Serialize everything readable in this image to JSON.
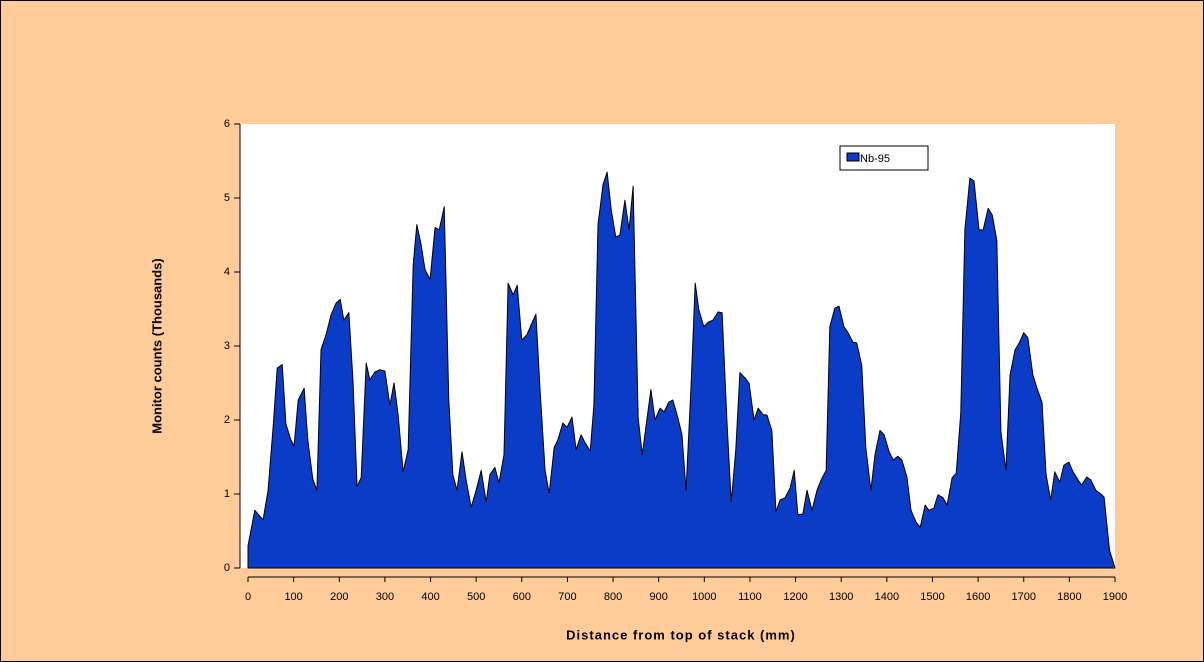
{
  "chart_data": {
    "type": "area",
    "xlabel": "Distance from top of stack (mm)",
    "ylabel": "Monitor counts (Thousands)",
    "x": [
      0,
      15,
      33,
      44,
      55,
      64,
      75,
      83,
      94,
      101,
      110,
      123,
      131,
      142,
      151,
      160,
      171,
      182,
      193,
      202,
      210,
      221,
      230,
      239,
      248,
      259,
      267,
      278,
      289,
      300,
      311,
      320,
      329,
      340,
      351,
      362,
      370,
      379,
      388,
      399,
      410,
      419,
      430,
      440,
      449,
      458,
      469,
      478,
      489,
      500,
      511,
      522,
      530,
      541,
      550,
      561,
      570,
      581,
      590,
      600,
      611,
      620,
      631,
      640,
      651,
      660,
      671,
      679,
      690,
      699,
      710,
      719,
      730,
      739,
      750,
      758,
      767,
      778,
      787,
      796,
      806,
      815,
      826,
      835,
      844,
      855,
      864,
      874,
      883,
      892,
      903,
      912,
      922,
      931,
      942,
      951,
      960,
      971,
      980,
      988,
      999,
      1008,
      1019,
      1030,
      1039,
      1050,
      1059,
      1069,
      1078,
      1089,
      1098,
      1109,
      1118,
      1129,
      1137,
      1148,
      1157,
      1166,
      1177,
      1188,
      1197,
      1205,
      1216,
      1225,
      1236,
      1247,
      1256,
      1267,
      1275,
      1286,
      1295,
      1306,
      1315,
      1326,
      1334,
      1345,
      1354,
      1365,
      1374,
      1385,
      1394,
      1405,
      1414,
      1424,
      1433,
      1444,
      1453,
      1464,
      1473,
      1484,
      1492,
      1503,
      1512,
      1523,
      1532,
      1543,
      1552,
      1562,
      1571,
      1582,
      1591,
      1602,
      1611,
      1622,
      1631,
      1641,
      1650,
      1661,
      1670,
      1681,
      1690,
      1700,
      1709,
      1720,
      1729,
      1740,
      1749,
      1759,
      1768,
      1779,
      1788,
      1799,
      1808,
      1819,
      1827,
      1838,
      1847,
      1858,
      1867,
      1876,
      1888,
      1900
    ],
    "series": [
      {
        "name": "Nb-95",
        "color": "#0a3cc8",
        "values": [
          0.3,
          0.78,
          0.65,
          1.05,
          1.9,
          2.7,
          2.75,
          1.95,
          1.73,
          1.65,
          2.27,
          2.43,
          1.73,
          1.2,
          1.05,
          2.95,
          3.15,
          3.42,
          3.58,
          3.63,
          3.35,
          3.45,
          2.54,
          1.1,
          1.22,
          2.77,
          2.54,
          2.65,
          2.68,
          2.66,
          2.2,
          2.5,
          2.07,
          1.3,
          1.6,
          4.1,
          4.64,
          4.38,
          4.03,
          3.9,
          4.6,
          4.57,
          4.88,
          2.27,
          1.26,
          1.05,
          1.57,
          1.19,
          0.82,
          1.05,
          1.32,
          0.89,
          1.26,
          1.36,
          1.15,
          1.53,
          3.85,
          3.69,
          3.82,
          3.08,
          3.15,
          3.28,
          3.43,
          2.41,
          1.32,
          1.01,
          1.63,
          1.73,
          1.96,
          1.9,
          2.04,
          1.6,
          1.8,
          1.69,
          1.58,
          2.2,
          4.64,
          5.18,
          5.35,
          4.84,
          4.47,
          4.5,
          4.97,
          4.57,
          5.16,
          2.03,
          1.53,
          2.0,
          2.41,
          2.0,
          2.16,
          2.11,
          2.24,
          2.27,
          2.03,
          1.8,
          1.05,
          2.47,
          3.85,
          3.49,
          3.26,
          3.32,
          3.35,
          3.46,
          3.45,
          1.93,
          0.89,
          1.6,
          2.64,
          2.57,
          2.5,
          2.0,
          2.16,
          2.07,
          2.07,
          1.86,
          0.76,
          0.92,
          0.95,
          1.08,
          1.32,
          0.72,
          0.73,
          1.05,
          0.78,
          1.05,
          1.19,
          1.32,
          3.26,
          3.51,
          3.54,
          3.26,
          3.18,
          3.05,
          3.04,
          2.74,
          1.62,
          1.05,
          1.53,
          1.86,
          1.8,
          1.57,
          1.46,
          1.51,
          1.46,
          1.23,
          0.78,
          0.62,
          0.55,
          0.85,
          0.78,
          0.81,
          0.99,
          0.95,
          0.85,
          1.22,
          1.28,
          2.09,
          4.57,
          5.27,
          5.23,
          4.57,
          4.57,
          4.86,
          4.77,
          4.43,
          1.84,
          1.32,
          2.61,
          2.95,
          3.04,
          3.18,
          3.11,
          2.61,
          2.43,
          2.24,
          1.26,
          0.92,
          1.3,
          1.16,
          1.39,
          1.43,
          1.3,
          1.19,
          1.12,
          1.23,
          1.19,
          1.05,
          1.01,
          0.96,
          0.24,
          0
        ]
      }
    ],
    "xlim": [
      0,
      1900
    ],
    "xticks": [
      0,
      100,
      200,
      300,
      400,
      500,
      600,
      700,
      800,
      900,
      1000,
      1100,
      1200,
      1300,
      1400,
      1500,
      1600,
      1700,
      1800,
      1900
    ],
    "ylim": [
      0,
      6
    ],
    "yticks": [
      0,
      1,
      2,
      3,
      4,
      5,
      6
    ],
    "legend_position": "top-right"
  }
}
